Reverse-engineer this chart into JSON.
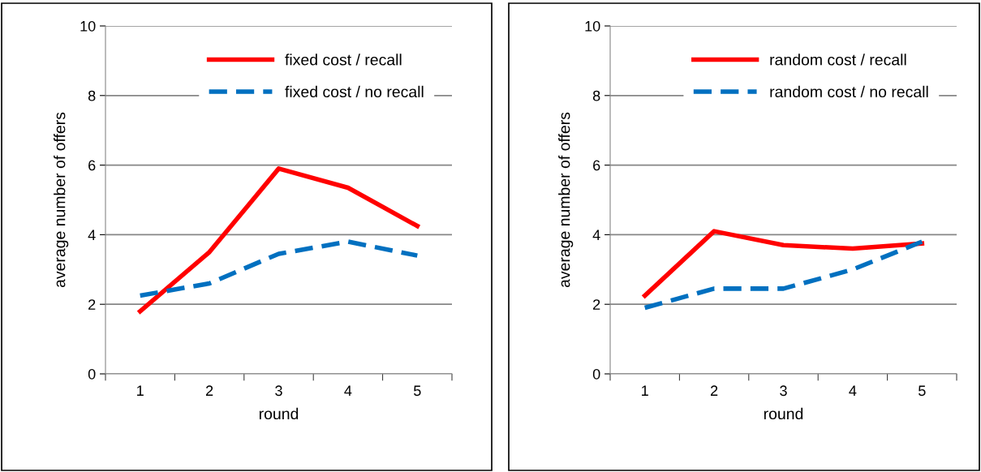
{
  "chart_data": [
    {
      "type": "line",
      "xlabel": "round",
      "ylabel": "average number of offers",
      "categories": [
        "1",
        "2",
        "3",
        "4",
        "5"
      ],
      "ylim": [
        0,
        10
      ],
      "yticks": [
        0,
        2,
        4,
        6,
        8,
        10
      ],
      "grid": "y",
      "legend": "top right",
      "marker": "none",
      "series": [
        {
          "name": "fixed cost / recall",
          "color": "#ff0000",
          "line_style": "solid",
          "values": [
            1.8,
            3.5,
            5.9,
            5.35,
            4.25
          ]
        },
        {
          "name": "fixed cost / no recall",
          "color": "#0070c0",
          "line_style": "dashed",
          "values": [
            2.25,
            2.6,
            3.45,
            3.8,
            3.4
          ]
        }
      ]
    },
    {
      "type": "line",
      "xlabel": "round",
      "ylabel": "average number of offers",
      "categories": [
        "1",
        "2",
        "3",
        "4",
        "5"
      ],
      "ylim": [
        0,
        10
      ],
      "yticks": [
        0,
        2,
        4,
        6,
        8,
        10
      ],
      "grid": "y",
      "legend": "top right",
      "marker": "none",
      "series": [
        {
          "name": "random cost / recall",
          "color": "#ff0000",
          "line_style": "solid",
          "values": [
            2.25,
            4.1,
            3.7,
            3.6,
            3.75
          ]
        },
        {
          "name": "random cost / no recall",
          "color": "#0070c0",
          "line_style": "dashed",
          "values": [
            1.9,
            2.45,
            2.45,
            3.0,
            3.8
          ]
        }
      ]
    }
  ]
}
